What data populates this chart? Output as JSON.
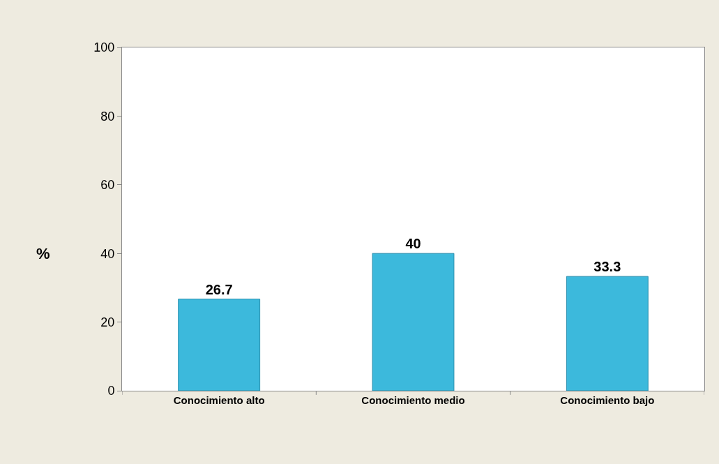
{
  "chart_data": {
    "type": "bar",
    "ylabel": "%",
    "categories": [
      "Conocimiento alto",
      "Conocimiento medio",
      "Conocimiento bajo"
    ],
    "values": [
      26.7,
      40,
      33.3
    ],
    "color": "#3cb9dc",
    "ylim": [
      0,
      100
    ],
    "yticks": [
      0,
      20,
      40,
      60,
      80,
      100
    ],
    "data_labels": true
  }
}
